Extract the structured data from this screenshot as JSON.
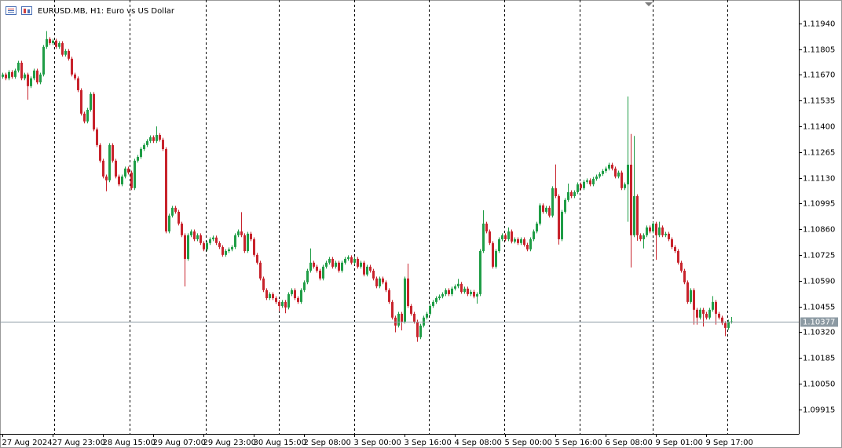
{
  "chart_data": {
    "type": "candlestick",
    "title": "EURUSD.MB, H1:  Euro vs US Dollar",
    "up_color": "#1f9d46",
    "down_color": "#c8232c",
    "last_price": 1.10377,
    "period_separators": true,
    "xlim": [
      -0.75,
      253.5
    ],
    "xticks": [
      {
        "value": 0,
        "label": "27 Aug 2024"
      },
      {
        "value": 16,
        "label": "27 Aug 23:00"
      },
      {
        "value": 32,
        "label": "28 Aug 15:00"
      },
      {
        "value": 48,
        "label": "29 Aug 07:00"
      },
      {
        "value": 64,
        "label": "29 Aug 23:00"
      },
      {
        "value": 80,
        "label": "30 Aug 15:00"
      },
      {
        "value": 96,
        "label": "2 Sep 08:00"
      },
      {
        "value": 112,
        "label": "3 Sep 00:00"
      },
      {
        "value": 128,
        "label": "3 Sep 16:00"
      },
      {
        "value": 144,
        "label": "4 Sep 08:00"
      },
      {
        "value": 160,
        "label": "5 Sep 00:00"
      },
      {
        "value": 176,
        "label": "5 Sep 16:00"
      },
      {
        "value": 192,
        "label": "6 Sep 08:00"
      },
      {
        "value": 208,
        "label": "9 Sep 01:00"
      },
      {
        "value": 224,
        "label": "9 Sep 17:00"
      }
    ],
    "ylim": [
      1.09787,
      1.12063
    ],
    "yticks": [
      {
        "value": 1.1194,
        "label": "1.11940"
      },
      1.11805,
      {
        "value": 1.1167,
        "label": "1.11670"
      },
      1.11535,
      {
        "value": 1.114,
        "label": "1.11400"
      },
      1.11265,
      {
        "value": 1.1113,
        "label": "1.11130"
      },
      1.10995,
      {
        "value": 1.1086,
        "label": "1.10860"
      },
      1.10725,
      {
        "value": 1.1059,
        "label": "1.10590"
      },
      1.10455,
      {
        "value": 1.1032,
        "label": "1.10320"
      },
      1.10185,
      {
        "value": 1.1005,
        "label": "1.10050"
      },
      1.09915
    ],
    "open": [
      1.1166,
      1.11672,
      1.11652,
      1.11685,
      1.1166,
      1.11693,
      1.11734,
      1.11652,
      1.11672,
      1.11611,
      1.11652,
      1.11693,
      1.11631,
      1.11672,
      1.11817,
      1.11858,
      1.11837,
      1.1185,
      1.11817,
      1.11837,
      1.11776,
      1.11796,
      1.11755,
      1.11672,
      1.11652,
      1.1159,
      1.11467,
      1.11426,
      1.11487,
      1.1157,
      1.11384,
      1.11302,
      1.1122,
      1.11137,
      1.11117,
      1.11302,
      1.1122,
      1.11137,
      1.11096,
      1.11137,
      1.11179,
      1.11158,
      1.11076,
      1.1122,
      1.1124,
      1.11281,
      1.11302,
      1.11323,
      1.11343,
      1.11323,
      1.11355,
      1.1133,
      1.11281,
      1.10849,
      1.10932,
      1.10973,
      1.10952,
      1.1089,
      1.10829,
      1.10705,
      1.10829,
      1.10849,
      1.10808,
      1.10829,
      1.10788,
      1.10755,
      1.10788,
      1.10808,
      1.10817,
      1.10788,
      1.10767,
      1.10726,
      1.10746,
      1.10755,
      1.10767,
      1.10829,
      1.10849,
      1.10829,
      1.10746,
      1.10837,
      1.10808,
      1.10726,
      1.10685,
      1.10602,
      1.10541,
      1.10499,
      1.1052,
      1.10499,
      1.10479,
      1.10458,
      1.10479,
      1.1045,
      1.1052,
      1.10541,
      1.10499,
      1.10479,
      1.10541,
      1.10582,
      1.10643,
      1.10685,
      1.10664,
      1.10643,
      1.10602,
      1.10664,
      1.10685,
      1.10705,
      1.10664,
      1.10685,
      1.10643,
      1.10685,
      1.10705,
      1.10714,
      1.10685,
      1.10705,
      1.10664,
      1.10685,
      1.10623,
      1.10664,
      1.10643,
      1.10602,
      1.10561,
      1.10602,
      1.10582,
      1.10541,
      1.10479,
      1.10397,
      1.10355,
      1.10417,
      1.10376,
      1.10602,
      1.10458,
      1.10417,
      1.10376,
      1.10294,
      1.10355,
      1.10397,
      1.10417,
      1.10458,
      1.10479,
      1.10499,
      1.10508,
      1.1052,
      1.10541,
      1.1052,
      1.10549,
      1.10561,
      1.10574,
      1.10532,
      1.10549,
      1.1052,
      1.10532,
      1.10508,
      1.1052,
      1.10746,
      1.1089,
      1.10849,
      1.10788,
      1.10664,
      1.10746,
      1.10808,
      1.10829,
      1.10808,
      1.10849,
      1.10796,
      1.10808,
      1.10788,
      1.10808,
      1.10779,
      1.10755,
      1.10808,
      1.10849,
      1.1089,
      1.10986,
      1.10952,
      1.10973,
      1.10932,
      1.11076,
      1.11034,
      1.10808,
      1.10952,
      1.11014,
      1.11055,
      1.11034,
      1.11055,
      1.11096,
      1.11076,
      1.11109,
      1.11117,
      1.11096,
      1.11125,
      1.11137,
      1.1115,
      1.11166,
      1.11179,
      1.11199,
      1.11179,
      1.11137,
      1.11158,
      1.11076,
      1.11096,
      1.11199,
      1.10829,
      1.11034,
      1.10829,
      1.10808,
      1.10829,
      1.1087,
      1.10849,
      1.1089,
      1.10829,
      1.1087,
      1.10829,
      1.10837,
      1.10808,
      1.10767,
      1.10746,
      1.10685,
      1.10643,
      1.10582,
      1.10479,
      1.10541,
      1.10438,
      1.10397,
      1.10438,
      1.10417,
      1.10397,
      1.10438,
      1.10479,
      1.10417,
      1.10397,
      1.10368,
      1.10343,
      1.10376
    ],
    "high": [
      1.11682,
      1.11682,
      1.11695,
      1.11695,
      1.11703,
      1.11744,
      1.11744,
      1.11682,
      1.11682,
      1.11662,
      1.11703,
      1.11703,
      1.11682,
      1.11827,
      1.119,
      1.11868,
      1.1186,
      1.1186,
      1.11847,
      1.11847,
      1.11806,
      1.11806,
      1.11765,
      1.11682,
      1.11662,
      1.116,
      1.11477,
      1.11497,
      1.1158,
      1.1158,
      1.11394,
      1.11312,
      1.1123,
      1.11147,
      1.11312,
      1.11312,
      1.1123,
      1.11147,
      1.11147,
      1.11189,
      1.11189,
      1.11168,
      1.1123,
      1.1125,
      1.11291,
      1.11312,
      1.11333,
      1.11353,
      1.11353,
      1.114,
      1.11365,
      1.1134,
      1.11291,
      1.10942,
      1.10983,
      1.10983,
      1.10962,
      1.109,
      1.10839,
      1.10839,
      1.10859,
      1.10859,
      1.10839,
      1.10839,
      1.10798,
      1.10798,
      1.10818,
      1.10827,
      1.10827,
      1.10798,
      1.10777,
      1.10756,
      1.10765,
      1.10777,
      1.10839,
      1.10859,
      1.1095,
      1.10839,
      1.10847,
      1.10847,
      1.10818,
      1.10736,
      1.10695,
      1.10612,
      1.10551,
      1.1053,
      1.1053,
      1.10509,
      1.10489,
      1.10489,
      1.10489,
      1.1053,
      1.10551,
      1.10551,
      1.10509,
      1.10551,
      1.10592,
      1.10653,
      1.1076,
      1.10695,
      1.10674,
      1.10653,
      1.10674,
      1.10695,
      1.10715,
      1.10715,
      1.10695,
      1.10695,
      1.10695,
      1.10715,
      1.10724,
      1.10724,
      1.10715,
      1.10715,
      1.10695,
      1.10695,
      1.10674,
      1.10674,
      1.10653,
      1.10612,
      1.10612,
      1.10612,
      1.10592,
      1.10551,
      1.10489,
      1.10407,
      1.10427,
      1.10427,
      1.10612,
      1.1068,
      1.10468,
      1.10427,
      1.10386,
      1.10365,
      1.10407,
      1.10427,
      1.10468,
      1.10489,
      1.10509,
      1.10518,
      1.1053,
      1.10551,
      1.10551,
      1.10559,
      1.10571,
      1.106,
      1.10584,
      1.10559,
      1.10559,
      1.10542,
      1.10542,
      1.1053,
      1.10756,
      1.1096,
      1.109,
      1.10859,
      1.10798,
      1.10756,
      1.10818,
      1.10839,
      1.10839,
      1.1087,
      1.10859,
      1.10818,
      1.10818,
      1.10818,
      1.10818,
      1.10789,
      1.10818,
      1.10859,
      1.109,
      1.10996,
      1.10996,
      1.10983,
      1.10983,
      1.11086,
      1.112,
      1.11044,
      1.10962,
      1.11024,
      1.111,
      1.11065,
      1.11065,
      1.11106,
      1.11106,
      1.11119,
      1.11127,
      1.11127,
      1.11135,
      1.11147,
      1.1116,
      1.11176,
      1.11189,
      1.11209,
      1.11209,
      1.11189,
      1.11168,
      1.11168,
      1.11106,
      1.11557,
      1.1136,
      1.1135,
      1.11044,
      1.10839,
      1.10839,
      1.1088,
      1.1088,
      1.109,
      1.109,
      1.109,
      1.1088,
      1.10847,
      1.10847,
      1.10818,
      1.10777,
      1.10756,
      1.10695,
      1.10653,
      1.10592,
      1.10551,
      1.10551,
      1.10448,
      1.10448,
      1.10448,
      1.10427,
      1.10448,
      1.1051,
      1.10489,
      1.10427,
      1.10407,
      1.10378,
      1.10386,
      1.104
    ],
    "low": [
      1.1165,
      1.11642,
      1.11642,
      1.1165,
      1.1165,
      1.11683,
      1.11642,
      1.11642,
      1.1154,
      1.11601,
      1.11642,
      1.11621,
      1.11621,
      1.11662,
      1.11807,
      1.11827,
      1.11827,
      1.11807,
      1.11807,
      1.11766,
      1.11766,
      1.11745,
      1.11662,
      1.11642,
      1.1158,
      1.11457,
      1.11416,
      1.11416,
      1.11477,
      1.11374,
      1.11292,
      1.1121,
      1.11127,
      1.1106,
      1.11107,
      1.1121,
      1.11127,
      1.11086,
      1.11086,
      1.11127,
      1.11148,
      1.11066,
      1.11066,
      1.1121,
      1.1123,
      1.11271,
      1.11292,
      1.11313,
      1.11313,
      1.11313,
      1.1132,
      1.11271,
      1.10839,
      1.10839,
      1.10922,
      1.10942,
      1.1088,
      1.10819,
      1.1056,
      1.10695,
      1.10819,
      1.10798,
      1.10798,
      1.10778,
      1.10745,
      1.10745,
      1.10778,
      1.10798,
      1.10778,
      1.10757,
      1.10716,
      1.10716,
      1.10736,
      1.10745,
      1.10757,
      1.10819,
      1.10819,
      1.10736,
      1.10736,
      1.10798,
      1.10716,
      1.10675,
      1.10592,
      1.10531,
      1.10489,
      1.10489,
      1.10489,
      1.10469,
      1.1043,
      1.10448,
      1.1042,
      1.1044,
      1.1051,
      1.10489,
      1.10469,
      1.10469,
      1.10531,
      1.10572,
      1.10633,
      1.10654,
      1.10633,
      1.10592,
      1.10592,
      1.10654,
      1.10675,
      1.10654,
      1.10654,
      1.10633,
      1.10633,
      1.10675,
      1.10695,
      1.10675,
      1.10675,
      1.10654,
      1.10654,
      1.10613,
      1.10613,
      1.10633,
      1.10592,
      1.10551,
      1.10551,
      1.10572,
      1.10531,
      1.10469,
      1.10387,
      1.1032,
      1.10345,
      1.1033,
      1.10366,
      1.10448,
      1.10407,
      1.10366,
      1.1027,
      1.10284,
      1.10345,
      1.10387,
      1.10407,
      1.10448,
      1.10469,
      1.10489,
      1.10498,
      1.1051,
      1.1051,
      1.1051,
      1.10539,
      1.10551,
      1.10522,
      1.10522,
      1.1051,
      1.1051,
      1.10498,
      1.1047,
      1.1051,
      1.10736,
      1.10839,
      1.10778,
      1.10654,
      1.10654,
      1.10736,
      1.10798,
      1.10798,
      1.10798,
      1.10786,
      1.10786,
      1.10778,
      1.10778,
      1.10769,
      1.10745,
      1.10745,
      1.10798,
      1.10839,
      1.1088,
      1.10942,
      1.10942,
      1.10922,
      1.10922,
      1.11024,
      1.1078,
      1.10798,
      1.10942,
      1.11004,
      1.11024,
      1.11024,
      1.11045,
      1.11066,
      1.11066,
      1.11099,
      1.11086,
      1.11086,
      1.11115,
      1.11127,
      1.1114,
      1.11156,
      1.11169,
      1.11169,
      1.11127,
      1.11127,
      1.11066,
      1.11066,
      1.109,
      1.1066,
      1.10819,
      1.108,
      1.10798,
      1.1076,
      1.10819,
      1.10839,
      1.10839,
      1.107,
      1.10819,
      1.10819,
      1.10819,
      1.10798,
      1.10757,
      1.10736,
      1.10675,
      1.10633,
      1.10572,
      1.10469,
      1.10469,
      1.1036,
      1.1036,
      1.10387,
      1.1035,
      1.10387,
      1.10387,
      1.10428,
      1.1036,
      1.10387,
      1.10358,
      1.103,
      1.10333,
      1.10366
    ],
    "close": [
      1.11672,
      1.11652,
      1.11685,
      1.1166,
      1.11693,
      1.11734,
      1.11652,
      1.11672,
      1.11611,
      1.11652,
      1.11693,
      1.11631,
      1.11672,
      1.11817,
      1.11858,
      1.11837,
      1.1185,
      1.11817,
      1.11837,
      1.11776,
      1.11796,
      1.11755,
      1.11672,
      1.11652,
      1.1159,
      1.11467,
      1.11426,
      1.11487,
      1.1157,
      1.11384,
      1.11302,
      1.1122,
      1.11137,
      1.11117,
      1.11302,
      1.1122,
      1.11137,
      1.11096,
      1.11137,
      1.11179,
      1.11158,
      1.11076,
      1.1122,
      1.1124,
      1.11281,
      1.11302,
      1.11323,
      1.11343,
      1.11323,
      1.11355,
      1.1133,
      1.11281,
      1.10849,
      1.10932,
      1.10973,
      1.10952,
      1.1089,
      1.10829,
      1.10705,
      1.10829,
      1.10849,
      1.10808,
      1.10829,
      1.10788,
      1.10755,
      1.10788,
      1.10808,
      1.10817,
      1.10788,
      1.10767,
      1.10726,
      1.10746,
      1.10755,
      1.10767,
      1.10829,
      1.10849,
      1.10829,
      1.10746,
      1.10837,
      1.10808,
      1.10726,
      1.10685,
      1.10602,
      1.10541,
      1.10499,
      1.1052,
      1.10499,
      1.10479,
      1.10458,
      1.10479,
      1.1045,
      1.1052,
      1.10541,
      1.10499,
      1.10479,
      1.10541,
      1.10582,
      1.10643,
      1.10685,
      1.10664,
      1.10643,
      1.10602,
      1.10664,
      1.10685,
      1.10705,
      1.10664,
      1.10685,
      1.10643,
      1.10685,
      1.10705,
      1.10714,
      1.10685,
      1.10705,
      1.10664,
      1.10685,
      1.10623,
      1.10664,
      1.10643,
      1.10602,
      1.10561,
      1.10602,
      1.10582,
      1.10541,
      1.10479,
      1.10397,
      1.10355,
      1.10417,
      1.10376,
      1.10602,
      1.10458,
      1.10417,
      1.10376,
      1.10294,
      1.10355,
      1.10397,
      1.10417,
      1.10458,
      1.10479,
      1.10499,
      1.10508,
      1.1052,
      1.10541,
      1.1052,
      1.10549,
      1.10561,
      1.10574,
      1.10532,
      1.10549,
      1.1052,
      1.10532,
      1.10508,
      1.1052,
      1.10746,
      1.1089,
      1.10849,
      1.10788,
      1.10664,
      1.10746,
      1.10808,
      1.10829,
      1.10808,
      1.10849,
      1.10796,
      1.10808,
      1.10788,
      1.10808,
      1.10779,
      1.10755,
      1.10808,
      1.10849,
      1.1089,
      1.10986,
      1.10952,
      1.10973,
      1.10932,
      1.11076,
      1.11034,
      1.10808,
      1.10952,
      1.11014,
      1.11055,
      1.11034,
      1.11055,
      1.11096,
      1.11076,
      1.11109,
      1.11117,
      1.11096,
      1.11125,
      1.11137,
      1.1115,
      1.11166,
      1.11179,
      1.11199,
      1.11179,
      1.11137,
      1.11158,
      1.11076,
      1.11096,
      1.11199,
      1.10829,
      1.11034,
      1.10829,
      1.10808,
      1.10829,
      1.1087,
      1.10849,
      1.1089,
      1.10829,
      1.1087,
      1.10829,
      1.10837,
      1.10808,
      1.10767,
      1.10746,
      1.10685,
      1.10643,
      1.10582,
      1.10479,
      1.10541,
      1.10438,
      1.10397,
      1.10438,
      1.10417,
      1.10397,
      1.10438,
      1.10479,
      1.10417,
      1.10397,
      1.10368,
      1.10343,
      1.10376,
      1.10377
    ]
  }
}
